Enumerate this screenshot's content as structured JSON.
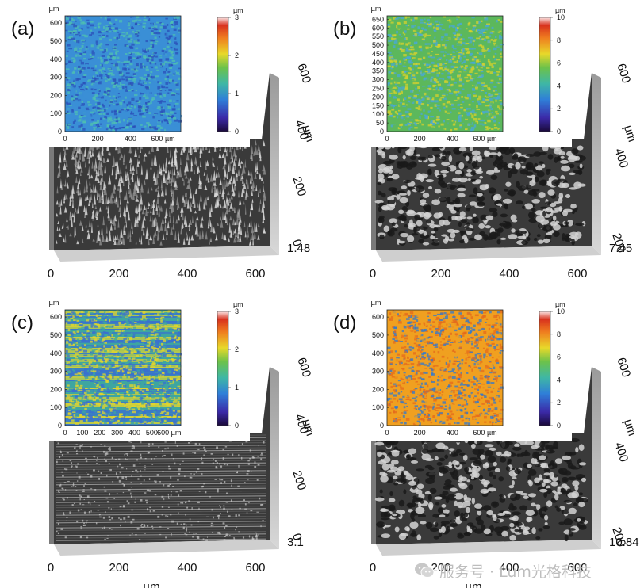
{
  "panels": [
    {
      "label": "(a)",
      "map": {
        "y_unit": "µm",
        "y_ticks": [
          "0",
          "100",
          "200",
          "300",
          "400",
          "500",
          "600"
        ],
        "x_ticks": [
          "0",
          "200",
          "400",
          "600 µm"
        ],
        "colorbar_unit": "µm",
        "colorbar_ticks": [
          "0",
          "1",
          "2",
          "3"
        ],
        "dominant_color": "#3a8fd6",
        "secondary_color": "#2b4fb8",
        "accent_color": "#4fc0b0"
      },
      "surface": {
        "x_ticks": [
          "0",
          "200",
          "400",
          "600"
        ],
        "y_ticks": [
          "0",
          "200",
          "400",
          "600"
        ],
        "y_unit": "µm",
        "z_max": "1.48",
        "texture": "spikes"
      }
    },
    {
      "label": "(b)",
      "map": {
        "y_unit": "µm",
        "y_ticks": [
          "0",
          "50",
          "100",
          "150",
          "200",
          "250",
          "300",
          "350",
          "400",
          "450",
          "500",
          "550",
          "600",
          "650"
        ],
        "x_ticks": [
          "0",
          "200",
          "400",
          "600 µm"
        ],
        "colorbar_unit": "µm",
        "colorbar_ticks": [
          "0",
          "2",
          "4",
          "6",
          "8",
          "10"
        ],
        "dominant_color": "#5cb85c",
        "secondary_color": "#d7d12c",
        "accent_color": "#4aa8d8"
      },
      "surface": {
        "x_ticks": [
          "0",
          "200",
          "400",
          "600"
        ],
        "y_ticks": [
          "200",
          "400",
          "600"
        ],
        "y_unit": "µm",
        "z_max": "7.45",
        "texture": "porous"
      }
    },
    {
      "label": "(c)",
      "map": {
        "y_unit": "µm",
        "y_ticks": [
          "0",
          "100",
          "200",
          "300",
          "400",
          "500",
          "600"
        ],
        "x_ticks": [
          "0",
          "100",
          "200",
          "300",
          "400",
          "500",
          "600 µm"
        ],
        "colorbar_unit": "µm",
        "colorbar_ticks": [
          "0",
          "1",
          "2",
          "3"
        ],
        "dominant_color": "#3fa6a0",
        "secondary_color": "#e6d62a",
        "accent_color": "#3a6fd0"
      },
      "surface": {
        "x_ticks": [
          "0",
          "200",
          "400",
          "600"
        ],
        "y_ticks": [
          "0",
          "200",
          "400",
          "600"
        ],
        "y_unit": "µm",
        "z_max": "3.1",
        "texture": "stripes"
      }
    },
    {
      "label": "(d)",
      "map": {
        "y_unit": "µm",
        "y_ticks": [
          "0",
          "100",
          "200",
          "300",
          "400",
          "500",
          "600"
        ],
        "x_ticks": [
          "0",
          "200",
          "400",
          "600 µm"
        ],
        "colorbar_unit": "µm",
        "colorbar_ticks": [
          "0",
          "2",
          "4",
          "6",
          "8",
          "10"
        ],
        "dominant_color": "#f0a020",
        "secondary_color": "#e46a1c",
        "accent_color": "#2f78d0"
      },
      "surface": {
        "x_ticks": [
          "0",
          "200",
          "400",
          "600"
        ],
        "y_ticks": [
          "200",
          "400",
          "600"
        ],
        "y_unit": "µm",
        "z_max": "10.84",
        "texture": "porous"
      }
    }
  ],
  "x_axis_title": "µm",
  "watermark": "服务号 · Lum光格科技",
  "watermark_icon": "wechat-icon"
}
